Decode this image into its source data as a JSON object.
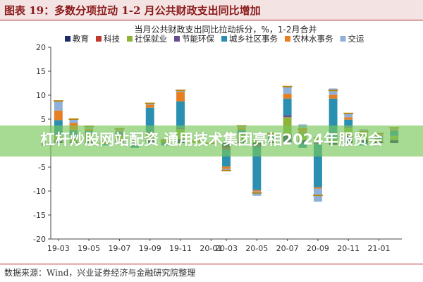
{
  "figure_title": "图表 19：多数分项拉动 1-2 月公共财政支出同比增加",
  "source_note": "数据来源：Wind，兴业证券经济与金融研究院整理",
  "banner_text": "杠杆炒股网站配资 通用技术集团亮相2024年服贸会",
  "chart_data": {
    "type": "bar",
    "stacked": true,
    "title": "当月公共财政支出同比拉动拆分，%，1-2月合并",
    "xlabel": "",
    "ylabel": "",
    "ylim": [
      -20,
      20
    ],
    "yticks": [
      -20,
      -15,
      -10,
      -5,
      0,
      5,
      10,
      15,
      20
    ],
    "grid": false,
    "legend_position": "top",
    "categories": [
      "19-03",
      "19-04",
      "19-05",
      "19-06",
      "19-07",
      "19-08",
      "19-09",
      "19-10",
      "19-11",
      "19-12",
      "20-01",
      "20-03",
      "20-04",
      "20-05",
      "20-06",
      "20-07",
      "20-08",
      "20-09",
      "20-10",
      "20-11",
      "20-12",
      "21-01",
      "21-02"
    ],
    "x_tick_labels": [
      "19-03",
      "19-05",
      "19-07",
      "19-09",
      "19-11",
      "20-01",
      "20-03",
      "20-05",
      "20-07",
      "20-09",
      "20-11",
      "21-01"
    ],
    "series": [
      {
        "name": "教育",
        "color": "#1f2a6b",
        "values": [
          0.5,
          0.2,
          0.3,
          0.0,
          0.4,
          0.1,
          0.6,
          0.1,
          0.8,
          0.0,
          0.0,
          -0.8,
          0.4,
          -0.3,
          0.2,
          1.6,
          0.6,
          0.2,
          -0.3,
          1.4,
          0.7,
          0.3,
          0.6
        ]
      },
      {
        "name": "科技",
        "color": "#c0392b",
        "values": [
          0.1,
          0.1,
          0.1,
          0.0,
          0.1,
          0.0,
          0.2,
          0.0,
          0.1,
          0.0,
          0.0,
          -0.3,
          0.1,
          -0.1,
          0.1,
          0.3,
          0.1,
          0.1,
          -0.1,
          0.2,
          0.1,
          0.1,
          0.1
        ]
      },
      {
        "name": "社保就业",
        "color": "#8fb339",
        "values": [
          1.0,
          0.8,
          1.5,
          0.5,
          1.2,
          0.6,
          1.4,
          0.8,
          2.0,
          0.5,
          0.0,
          0.2,
          1.4,
          0.6,
          0.5,
          3.5,
          1.5,
          1.0,
          0.8,
          1.6,
          1.2,
          0.5,
          0.8
        ]
      },
      {
        "name": "节能环保",
        "color": "#6a4c93",
        "values": [
          0.2,
          0.1,
          0.1,
          0.0,
          0.2,
          0.0,
          0.2,
          0.0,
          0.3,
          0.0,
          0.0,
          -0.3,
          0.1,
          -0.4,
          0.0,
          0.4,
          0.1,
          -0.2,
          0.0,
          0.2,
          0.1,
          0.1,
          0.1
        ]
      },
      {
        "name": "城乡社区事务",
        "color": "#2a8fb0",
        "values": [
          3.0,
          1.5,
          0.5,
          -0.5,
          0.5,
          -1.0,
          5.0,
          -0.5,
          5.5,
          0.0,
          0.0,
          -3.5,
          0.8,
          -9.0,
          0.6,
          3.5,
          -1.0,
          -9.0,
          8.5,
          1.5,
          -0.5,
          0.5,
          1.0
        ]
      },
      {
        "name": "农林水事务",
        "color": "#e67e22",
        "values": [
          2.0,
          1.5,
          0.5,
          0.0,
          0.2,
          0.0,
          0.6,
          0.0,
          2.0,
          0.0,
          0.0,
          -0.5,
          0.5,
          -0.3,
          0.4,
          1.0,
          0.8,
          -0.3,
          0.8,
          0.5,
          0.3,
          0.2,
          0.3
        ]
      },
      {
        "name": "交运",
        "color": "#8fb0d8",
        "values": [
          2.0,
          0.8,
          0.5,
          0.0,
          0.4,
          0.0,
          0.3,
          0.0,
          0.3,
          0.0,
          0.0,
          -0.5,
          0.3,
          -0.9,
          0.2,
          1.5,
          0.8,
          -2.7,
          1.3,
          0.8,
          0.5,
          0.3,
          0.3
        ]
      }
    ],
    "totals": [
      8.8,
      5.0,
      3.5,
      0.0,
      3.0,
      -0.3,
      8.3,
      0.4,
      11.0,
      0.5,
      0.0,
      -5.7,
      3.6,
      -10.4,
      2.0,
      11.8,
      2.9,
      -10.9,
      11.0,
      6.2,
      2.4,
      2.0,
      3.2
    ],
    "total_line_color": "#b8860b"
  }
}
